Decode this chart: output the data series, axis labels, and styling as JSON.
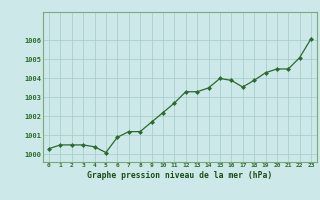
{
  "x": [
    0,
    1,
    2,
    3,
    4,
    5,
    6,
    7,
    8,
    9,
    10,
    11,
    12,
    13,
    14,
    15,
    16,
    17,
    18,
    19,
    20,
    21,
    22,
    23
  ],
  "y": [
    1000.3,
    1000.5,
    1000.5,
    1000.5,
    1000.4,
    1000.1,
    1000.9,
    1001.2,
    1001.2,
    1001.7,
    1002.2,
    1002.7,
    1003.3,
    1003.3,
    1003.5,
    1004.0,
    1003.9,
    1003.55,
    1003.9,
    1004.3,
    1004.5,
    1004.5,
    1005.1,
    1006.1
  ],
  "line_color": "#2d6a2d",
  "marker_color": "#2d6a2d",
  "bg_color": "#cce8e8",
  "grid_color": "#aacece",
  "axis_label_color": "#1a4d1a",
  "tick_color": "#2d6a2d",
  "border_color": "#7aaa7a",
  "xlabel": "Graphe pression niveau de la mer (hPa)",
  "ylim": [
    999.6,
    1007.5
  ],
  "yticks": [
    1000,
    1001,
    1002,
    1003,
    1004,
    1005,
    1006
  ],
  "xticks": [
    0,
    1,
    2,
    3,
    4,
    5,
    6,
    7,
    8,
    9,
    10,
    11,
    12,
    13,
    14,
    15,
    16,
    17,
    18,
    19,
    20,
    21,
    22,
    23
  ],
  "xtick_labels": [
    "0",
    "1",
    "2",
    "3",
    "4",
    "5",
    "6",
    "7",
    "8",
    "9",
    "10",
    "11",
    "12",
    "13",
    "14",
    "15",
    "16",
    "17",
    "18",
    "19",
    "20",
    "21",
    "22",
    "23"
  ]
}
